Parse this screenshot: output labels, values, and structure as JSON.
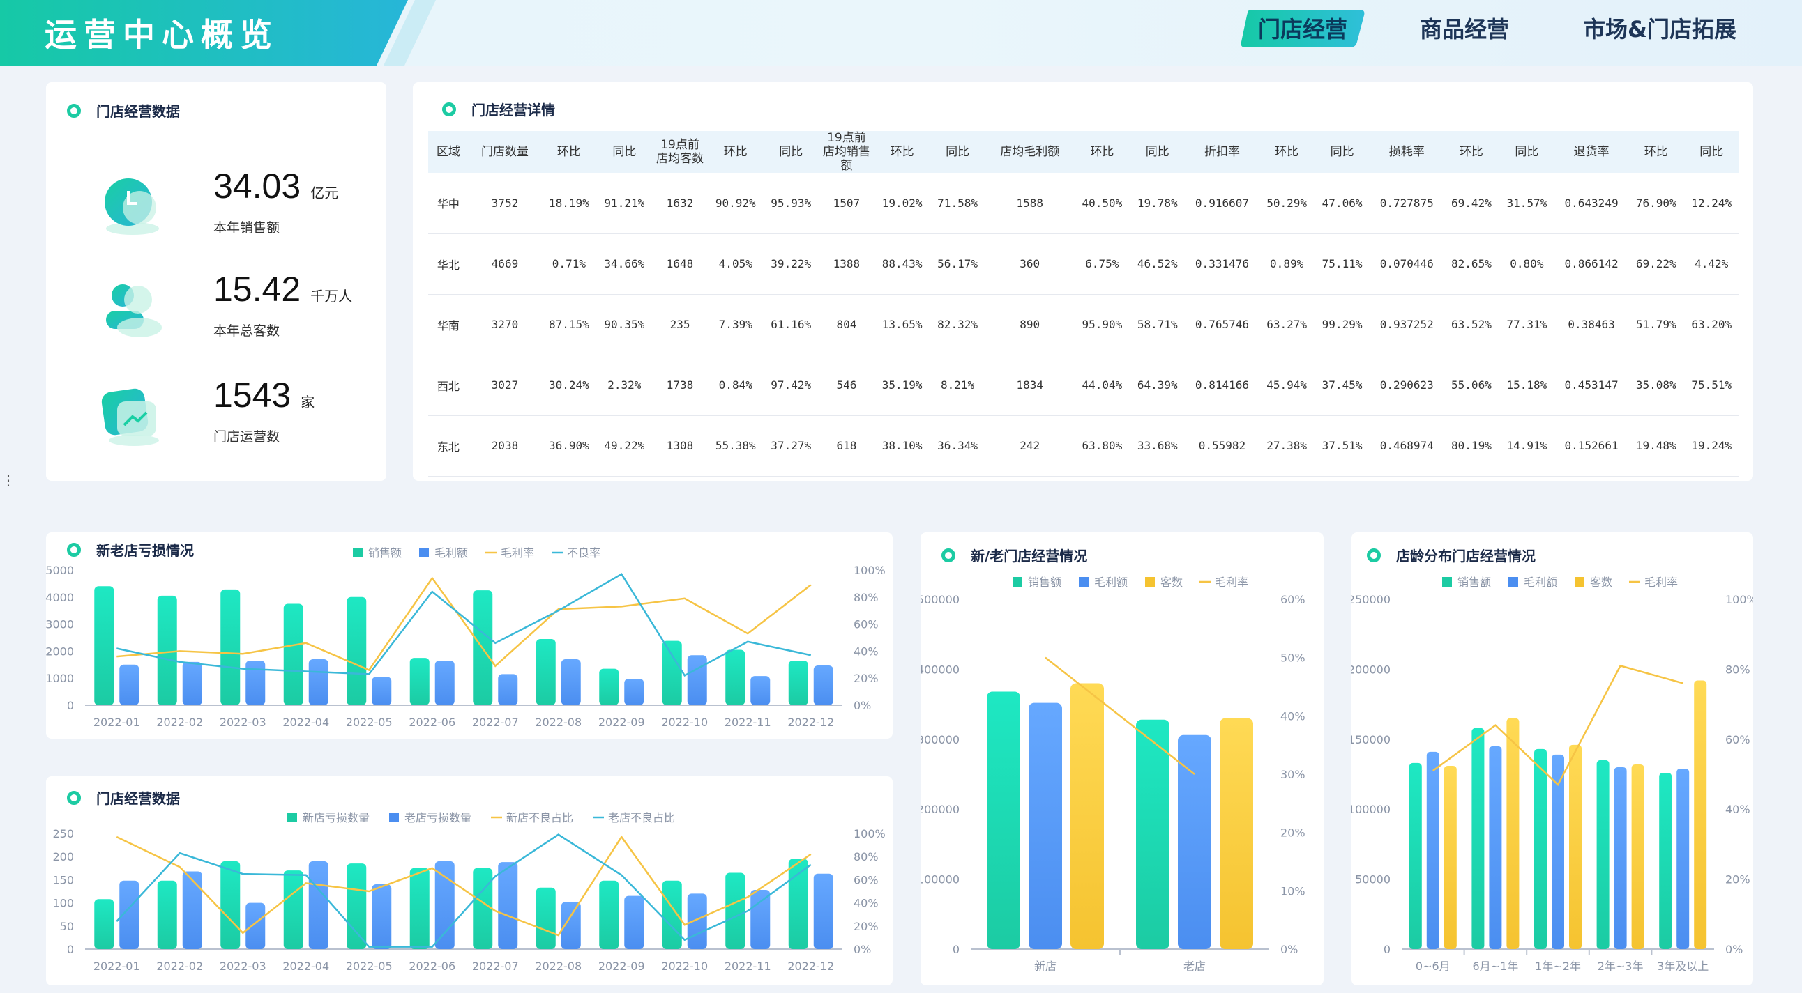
{
  "header": {
    "title": "运营中心概览",
    "tabs": [
      {
        "label": "门店经营",
        "active": true
      },
      {
        "label": "商品经营",
        "active": false
      },
      {
        "label": "市场&门店拓展",
        "active": false
      }
    ]
  },
  "kpi_panel": {
    "title": "门店经营数据",
    "items": [
      {
        "value": "34.03",
        "unit": "亿元",
        "label": "本年销售额",
        "icon": "coin-icon"
      },
      {
        "value": "15.42",
        "unit": "千万人",
        "label": "本年总客数",
        "icon": "user-icon"
      },
      {
        "value": "1543",
        "unit": "家",
        "label": "门店运营数",
        "icon": "chart-icon"
      }
    ]
  },
  "detail_panel": {
    "title": "门店经营详情",
    "columns": [
      "区域",
      "门店数量",
      "环比",
      "同比",
      "19点前店均客数",
      "环比",
      "同比",
      "19点前店均销售额",
      "环比",
      "同比",
      "店均毛利额",
      "环比",
      "同比",
      "折扣率",
      "环比",
      "同比",
      "损耗率",
      "环比",
      "同比",
      "退货率",
      "环比",
      "同比"
    ],
    "rows": [
      [
        "华中",
        "3752",
        "18.19%",
        "91.21%",
        "1632",
        "90.92%",
        "95.93%",
        "1507",
        "19.02%",
        "71.58%",
        "1588",
        "40.50%",
        "19.78%",
        "0.916607",
        "50.29%",
        "47.06%",
        "0.727875",
        "69.42%",
        "31.57%",
        "0.643249",
        "76.90%",
        "12.24%"
      ],
      [
        "华北",
        "4669",
        "0.71%",
        "34.66%",
        "1648",
        "4.05%",
        "39.22%",
        "1388",
        "88.43%",
        "56.17%",
        "360",
        "6.75%",
        "46.52%",
        "0.331476",
        "0.89%",
        "75.11%",
        "0.070446",
        "82.65%",
        "0.80%",
        "0.866142",
        "69.22%",
        "4.42%"
      ],
      [
        "华南",
        "3270",
        "87.15%",
        "90.35%",
        "235",
        "7.39%",
        "61.16%",
        "804",
        "13.65%",
        "82.32%",
        "890",
        "95.90%",
        "58.71%",
        "0.765746",
        "63.27%",
        "99.29%",
        "0.937252",
        "63.52%",
        "77.31%",
        "0.38463",
        "51.79%",
        "63.20%"
      ],
      [
        "西北",
        "3027",
        "30.24%",
        "2.32%",
        "1738",
        "0.84%",
        "97.42%",
        "546",
        "35.19%",
        "8.21%",
        "1834",
        "44.04%",
        "64.39%",
        "0.814166",
        "45.94%",
        "37.45%",
        "0.290623",
        "55.06%",
        "15.18%",
        "0.453147",
        "35.08%",
        "75.51%"
      ],
      [
        "东北",
        "2038",
        "36.90%",
        "49.22%",
        "1308",
        "55.38%",
        "37.27%",
        "618",
        "38.10%",
        "36.34%",
        "242",
        "63.80%",
        "33.68%",
        "0.55982",
        "27.38%",
        "37.51%",
        "0.468974",
        "80.19%",
        "14.91%",
        "0.152661",
        "19.48%",
        "19.24%"
      ]
    ]
  },
  "colors": {
    "green": "#1ccba3",
    "blue": "#4b8ef0",
    "yellow": "#f5c330",
    "line_yellow": "#f6c445",
    "line_cyan": "#3ab8d8",
    "title_dark": "#1b2a48"
  },
  "chart_data": [
    {
      "id": "c1",
      "title": "新老店亏损情况",
      "type": "bar",
      "categories": [
        "2022-01",
        "2022-02",
        "2022-03",
        "2022-04",
        "2022-05",
        "2022-06",
        "2022-07",
        "2022-08",
        "2022-09",
        "2022-10",
        "2022-11",
        "2022-12"
      ],
      "series": [
        {
          "name": "销售额",
          "kind": "bar",
          "axis": "left",
          "values": [
            4400,
            4050,
            4280,
            3750,
            4000,
            1750,
            4250,
            2450,
            1350,
            2380,
            2050,
            1650
          ]
        },
        {
          "name": "毛利额",
          "kind": "bar",
          "axis": "left",
          "values": [
            1500,
            1600,
            1650,
            1700,
            1050,
            1650,
            1150,
            1700,
            980,
            1850,
            1080,
            1470
          ]
        },
        {
          "name": "毛利率",
          "kind": "line",
          "axis": "right",
          "values": [
            36,
            40,
            38,
            46,
            26,
            94,
            29,
            71,
            73,
            79,
            53,
            89
          ]
        },
        {
          "name": "不良率",
          "kind": "line",
          "axis": "right",
          "values": [
            42,
            32,
            27,
            25,
            23,
            84,
            46,
            70,
            97,
            22,
            47,
            37
          ]
        }
      ],
      "ylim_left": [
        0,
        5000
      ],
      "ylim_right": [
        0,
        100
      ],
      "yticks_left": [
        "0",
        "1000",
        "2000",
        "3000",
        "4000",
        "5000"
      ],
      "yticks_right": [
        "0%",
        "20%",
        "40%",
        "60%",
        "80%",
        "100%"
      ],
      "legend": "top-center"
    },
    {
      "id": "c2",
      "title": "门店经营数据",
      "type": "bar",
      "categories": [
        "2022-01",
        "2022-02",
        "2022-03",
        "2022-04",
        "2022-05",
        "2022-06",
        "2022-07",
        "2022-08",
        "2022-09",
        "2022-10",
        "2022-11",
        "2022-12"
      ],
      "series": [
        {
          "name": "新店亏损数量",
          "kind": "bar",
          "axis": "left",
          "values": [
            108,
            148,
            190,
            170,
            185,
            175,
            175,
            133,
            148,
            148,
            165,
            195
          ]
        },
        {
          "name": "老店亏损数量",
          "kind": "bar",
          "axis": "left",
          "values": [
            148,
            168,
            100,
            190,
            140,
            190,
            188,
            102,
            115,
            120,
            128,
            163
          ]
        },
        {
          "name": "新店不良占比",
          "kind": "line",
          "axis": "right",
          "values": [
            97,
            71,
            14,
            57,
            50,
            70,
            33,
            12,
            97,
            21,
            45,
            82
          ]
        },
        {
          "name": "老店不良占比",
          "kind": "line",
          "axis": "right",
          "values": [
            24,
            83,
            65,
            64,
            2,
            2,
            63,
            99,
            64,
            8,
            33,
            73
          ]
        }
      ],
      "ylim_left": [
        0,
        250
      ],
      "ylim_right": [
        0,
        100
      ],
      "yticks_left": [
        "0",
        "50",
        "100",
        "150",
        "200",
        "250"
      ],
      "yticks_right": [
        "0%",
        "20%",
        "40%",
        "60%",
        "80%",
        "100%"
      ],
      "legend": "top-center"
    },
    {
      "id": "c3",
      "title": "新/老门店经营情况",
      "type": "bar",
      "categories": [
        "新店",
        "老店"
      ],
      "series": [
        {
          "name": "销售额",
          "kind": "bar",
          "axis": "left",
          "values": [
            368000,
            328000
          ]
        },
        {
          "name": "毛利额",
          "kind": "bar",
          "axis": "left",
          "values": [
            352000,
            306000
          ]
        },
        {
          "name": "客数",
          "kind": "bar",
          "axis": "left",
          "values": [
            380000,
            330000
          ]
        },
        {
          "name": "毛利率",
          "kind": "line",
          "axis": "right",
          "values": [
            50,
            30
          ]
        }
      ],
      "ylim_left": [
        0,
        500000
      ],
      "ylim_right": [
        0,
        60
      ],
      "yticks_left": [
        "0",
        "100000",
        "200000",
        "300000",
        "400000",
        "500000"
      ],
      "yticks_right": [
        "0%",
        "10%",
        "20%",
        "30%",
        "40%",
        "50%",
        "60%"
      ],
      "legend": "top-center"
    },
    {
      "id": "c4",
      "title": "店龄分布门店经营情况",
      "type": "bar",
      "categories": [
        "0~6月",
        "6月~1年",
        "1年~2年",
        "2年~3年",
        "3年及以上"
      ],
      "series": [
        {
          "name": "销售额",
          "kind": "bar",
          "axis": "left",
          "values": [
            133000,
            158000,
            143000,
            135000,
            126000
          ]
        },
        {
          "name": "毛利额",
          "kind": "bar",
          "axis": "left",
          "values": [
            141000,
            145000,
            139000,
            130000,
            129000
          ]
        },
        {
          "name": "客数",
          "kind": "bar",
          "axis": "left",
          "values": [
            131000,
            165000,
            146000,
            132000,
            192000
          ]
        },
        {
          "name": "毛利率",
          "kind": "line",
          "axis": "right",
          "values": [
            51,
            64,
            47,
            81,
            76
          ]
        }
      ],
      "ylim_left": [
        0,
        250000
      ],
      "ylim_right": [
        0,
        100
      ],
      "yticks_left": [
        "0",
        "50000",
        "100000",
        "150000",
        "200000",
        "250000"
      ],
      "yticks_right": [
        "0%",
        "20%",
        "40%",
        "60%",
        "80%",
        "100%"
      ],
      "legend": "top-center"
    }
  ]
}
